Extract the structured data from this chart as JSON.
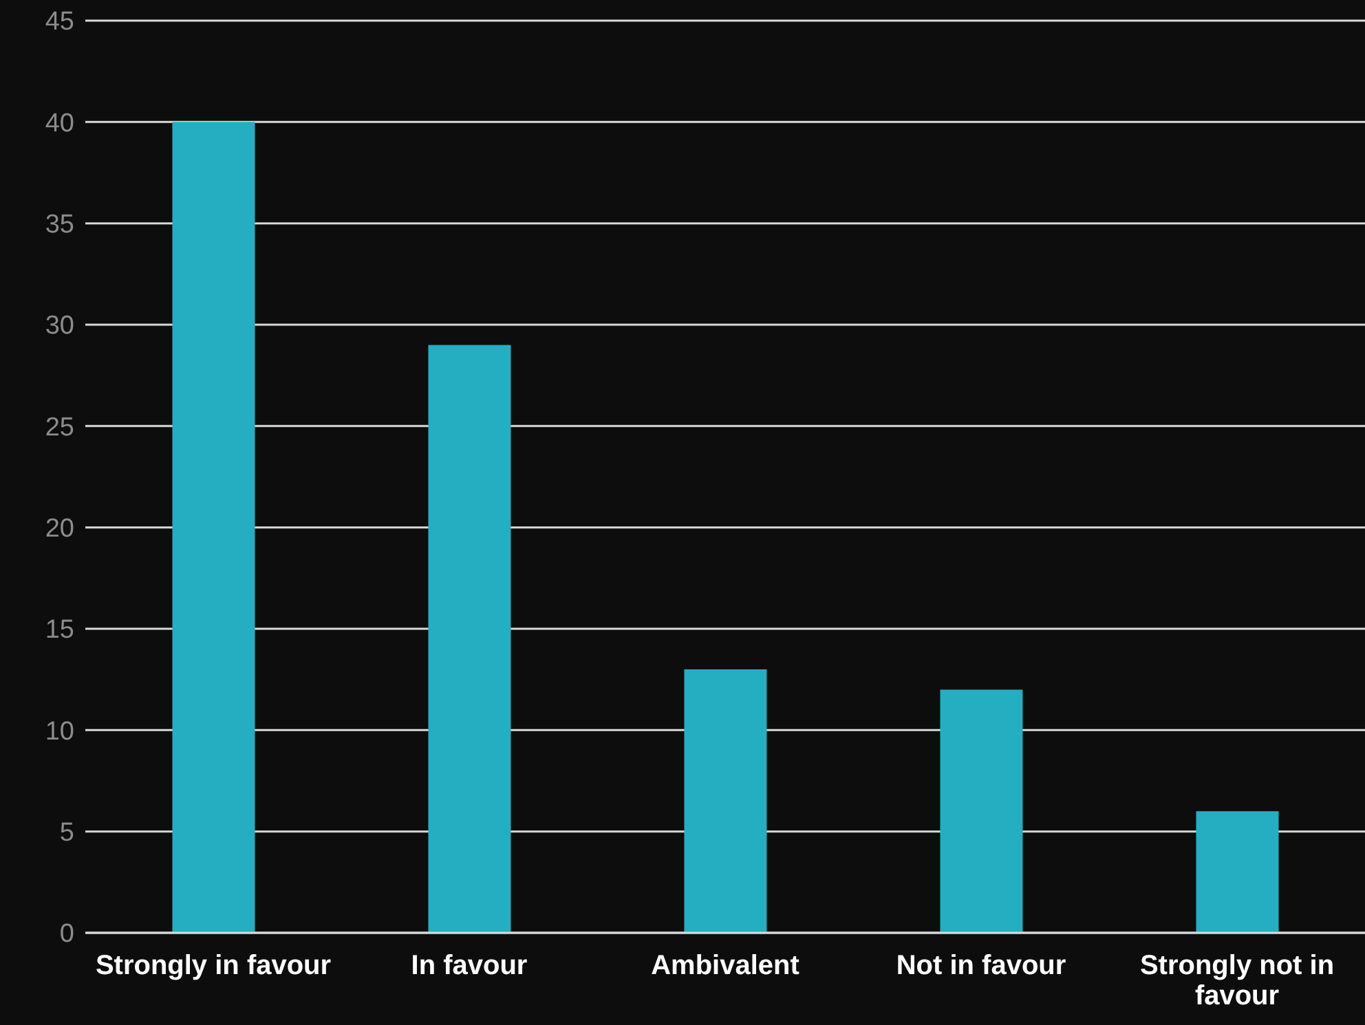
{
  "chart_data": {
    "type": "bar",
    "categories": [
      "Strongly in favour",
      "In favour",
      "Ambivalent",
      "Not in favour",
      "Strongly not in favour"
    ],
    "values": [
      40,
      29,
      13,
      12,
      6
    ],
    "color": "#25aec2",
    "ylim": [
      0,
      45
    ],
    "yticks": [
      0,
      5,
      10,
      15,
      20,
      25,
      30,
      35,
      40,
      45
    ],
    "grid": "y",
    "legend": false
  }
}
